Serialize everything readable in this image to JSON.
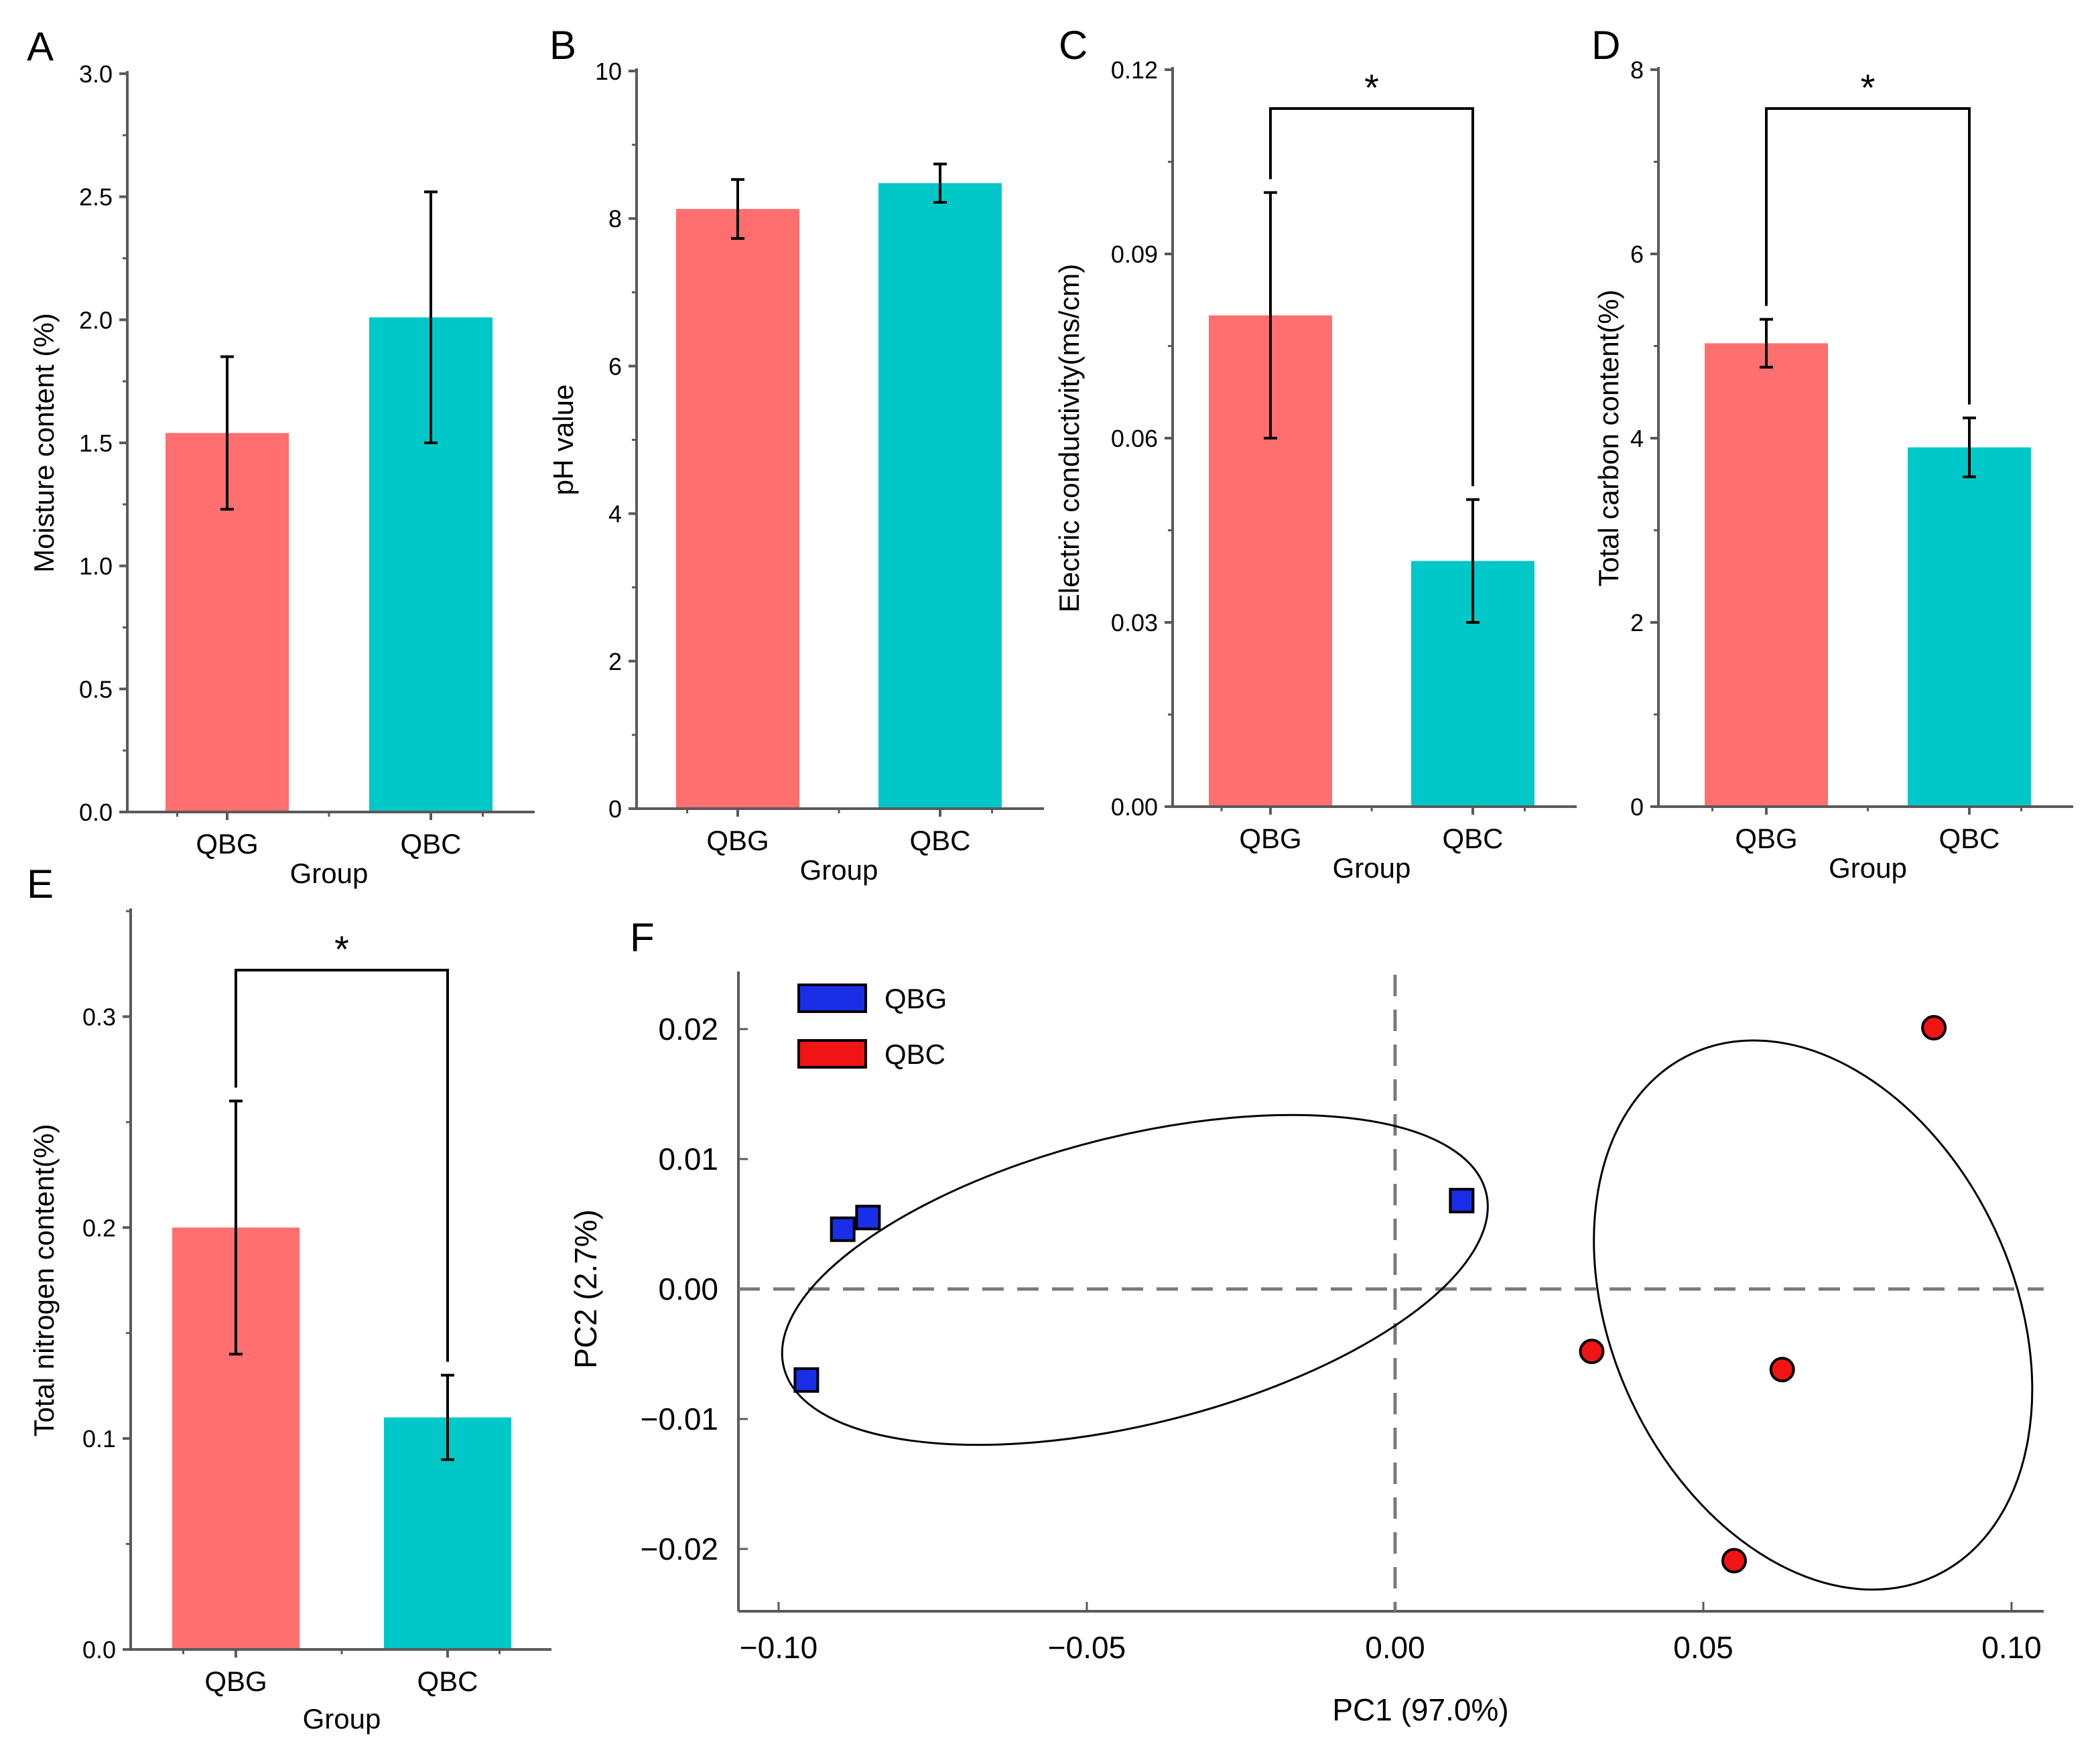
{
  "colors": {
    "qbg": "#ff6f6f",
    "qbc": "#00c8c8",
    "pca_qbg": "#1a2ee8",
    "pca_qbc": "#f01414",
    "axis": "#5a5a5a",
    "ref": "#7a7a7a"
  },
  "chart_data": [
    {
      "type": "bar",
      "panel": "A",
      "categories": [
        "QBG",
        "QBC"
      ],
      "values": [
        1.54,
        2.01
      ],
      "errors": [
        0.31,
        0.51
      ],
      "xlabel": "Group",
      "ylabel": "Moisture content (%)",
      "ylim": [
        0,
        3.0
      ],
      "yticks": [
        "0.0",
        "0.5",
        "1.0",
        "1.5",
        "2.0",
        "2.5",
        "3.0"
      ],
      "significance": ""
    },
    {
      "type": "bar",
      "panel": "B",
      "categories": [
        "QBG",
        "QBC"
      ],
      "values": [
        8.13,
        8.48
      ],
      "errors": [
        0.4,
        0.26
      ],
      "xlabel": "Group",
      "ylabel": "pH value",
      "ylim": [
        0,
        10
      ],
      "yticks": [
        "0",
        "2",
        "4",
        "6",
        "8",
        "10"
      ],
      "significance": ""
    },
    {
      "type": "bar",
      "panel": "C",
      "categories": [
        "QBG",
        "QBC"
      ],
      "values": [
        0.08,
        0.04
      ],
      "errors": [
        0.02,
        0.01
      ],
      "xlabel": "Group",
      "ylabel": "Electric conductivity(ms/cm)",
      "ylim": [
        0,
        0.12
      ],
      "yticks": [
        "0.00",
        "0.03",
        "0.06",
        "0.09",
        "0.12"
      ],
      "significance": "*"
    },
    {
      "type": "bar",
      "panel": "D",
      "categories": [
        "QBG",
        "QBC"
      ],
      "values": [
        5.03,
        3.9
      ],
      "errors": [
        0.26,
        0.32
      ],
      "xlabel": "Group",
      "ylabel": "Total carbon content(%)",
      "ylim": [
        0,
        8
      ],
      "yticks": [
        "0",
        "2",
        "4",
        "6",
        "8"
      ],
      "significance": "*"
    },
    {
      "type": "bar",
      "panel": "E",
      "categories": [
        "QBG",
        "QBC"
      ],
      "values": [
        0.2,
        0.11
      ],
      "errors": [
        0.06,
        0.02
      ],
      "xlabel": "Group",
      "ylabel": "Total nitrogen content(%)",
      "ylim": [
        0,
        0.35
      ],
      "yticks": [
        "0.0",
        "0.1",
        "0.2",
        "0.3"
      ],
      "significance": "*"
    },
    {
      "type": "scatter",
      "panel": "F",
      "xlabel": "PC1 (97.0%)",
      "ylabel": "PC2 (2.7%)",
      "xlim": [
        -0.1115,
        0.1115
      ],
      "ylim": [
        -0.0245,
        0.0245
      ],
      "xticks": [
        "−0.10",
        "−0.05",
        "0.00",
        "0.05",
        "0.10"
      ],
      "yticks": [
        "0.02",
        "0.01",
        "0.00",
        "−0.01",
        "−0.02"
      ],
      "series": [
        {
          "name": "QBG",
          "marker": "square",
          "x": [
            -0.0955,
            -0.0896,
            -0.0855,
            0.0108
          ],
          "y": [
            -0.007,
            0.0046,
            0.0055,
            0.0068
          ]
        },
        {
          "name": "QBC",
          "marker": "circle",
          "x": [
            0.0319,
            0.055,
            0.0628,
            0.0874
          ],
          "y": [
            -0.0048,
            -0.0209,
            -0.0062,
            0.0201
          ]
        }
      ],
      "ellipses": [
        {
          "group": "QBG",
          "cx": -0.0422,
          "cy": 0.0007,
          "rx": 0.064,
          "ry": 0.0125,
          "angle_deg": -14
        },
        {
          "group": "QBC",
          "cx": 0.0678,
          "cy": -0.002,
          "rx": 0.0355,
          "ry": 0.0213,
          "angle_deg": 65
        }
      ]
    }
  ]
}
